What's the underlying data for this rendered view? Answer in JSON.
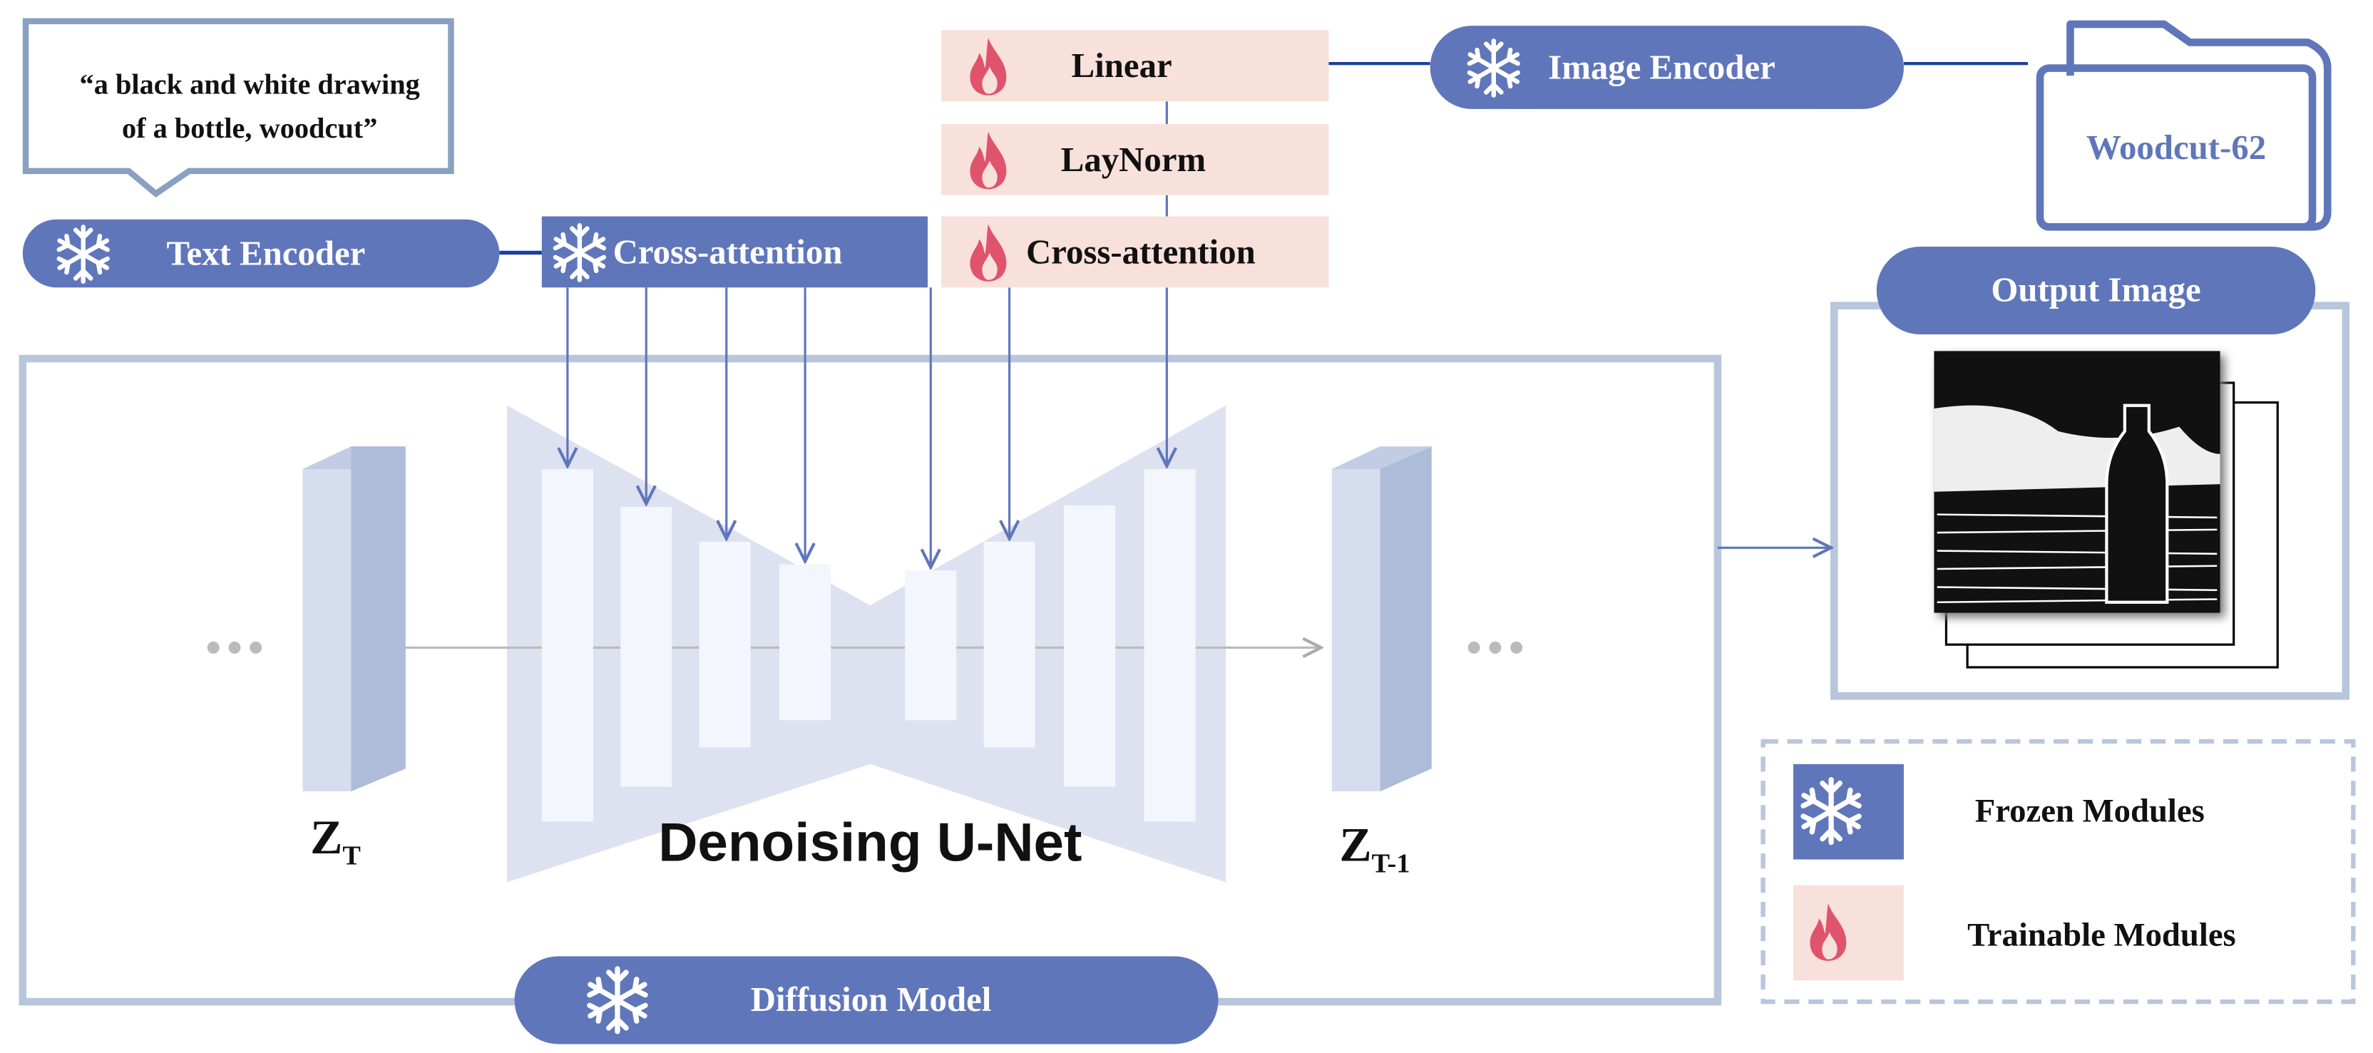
{
  "prompt": "“a black and white drawing of a bottle, woodcut”",
  "text_encoder": "Text Encoder",
  "frozen_cross_attention": "Cross-attention",
  "trainable": {
    "linear": "Linear",
    "laynorm": "LayNorm",
    "cross_attention": "Cross-attention"
  },
  "image_encoder": "Image Encoder",
  "dataset": "Woodcut-62",
  "output_image": "Output Image",
  "latent_in": {
    "base": "Z",
    "sub": "T"
  },
  "latent_out": {
    "base": "Z",
    "sub": "T-1"
  },
  "unet": "Denoising U-Net",
  "diffusion_model": "Diffusion Model",
  "legend": {
    "frozen": "Frozen Modules",
    "trainable": "Trainable Modules"
  },
  "colors": {
    "frozen": "#5f76ba",
    "trainable": "#f8e1da",
    "flame": "#e0536d",
    "frame": "#b8c6dc",
    "unet": "#dde1f0"
  },
  "icons": {
    "frozen": "snowflake-icon",
    "trainable": "flame-icon"
  }
}
